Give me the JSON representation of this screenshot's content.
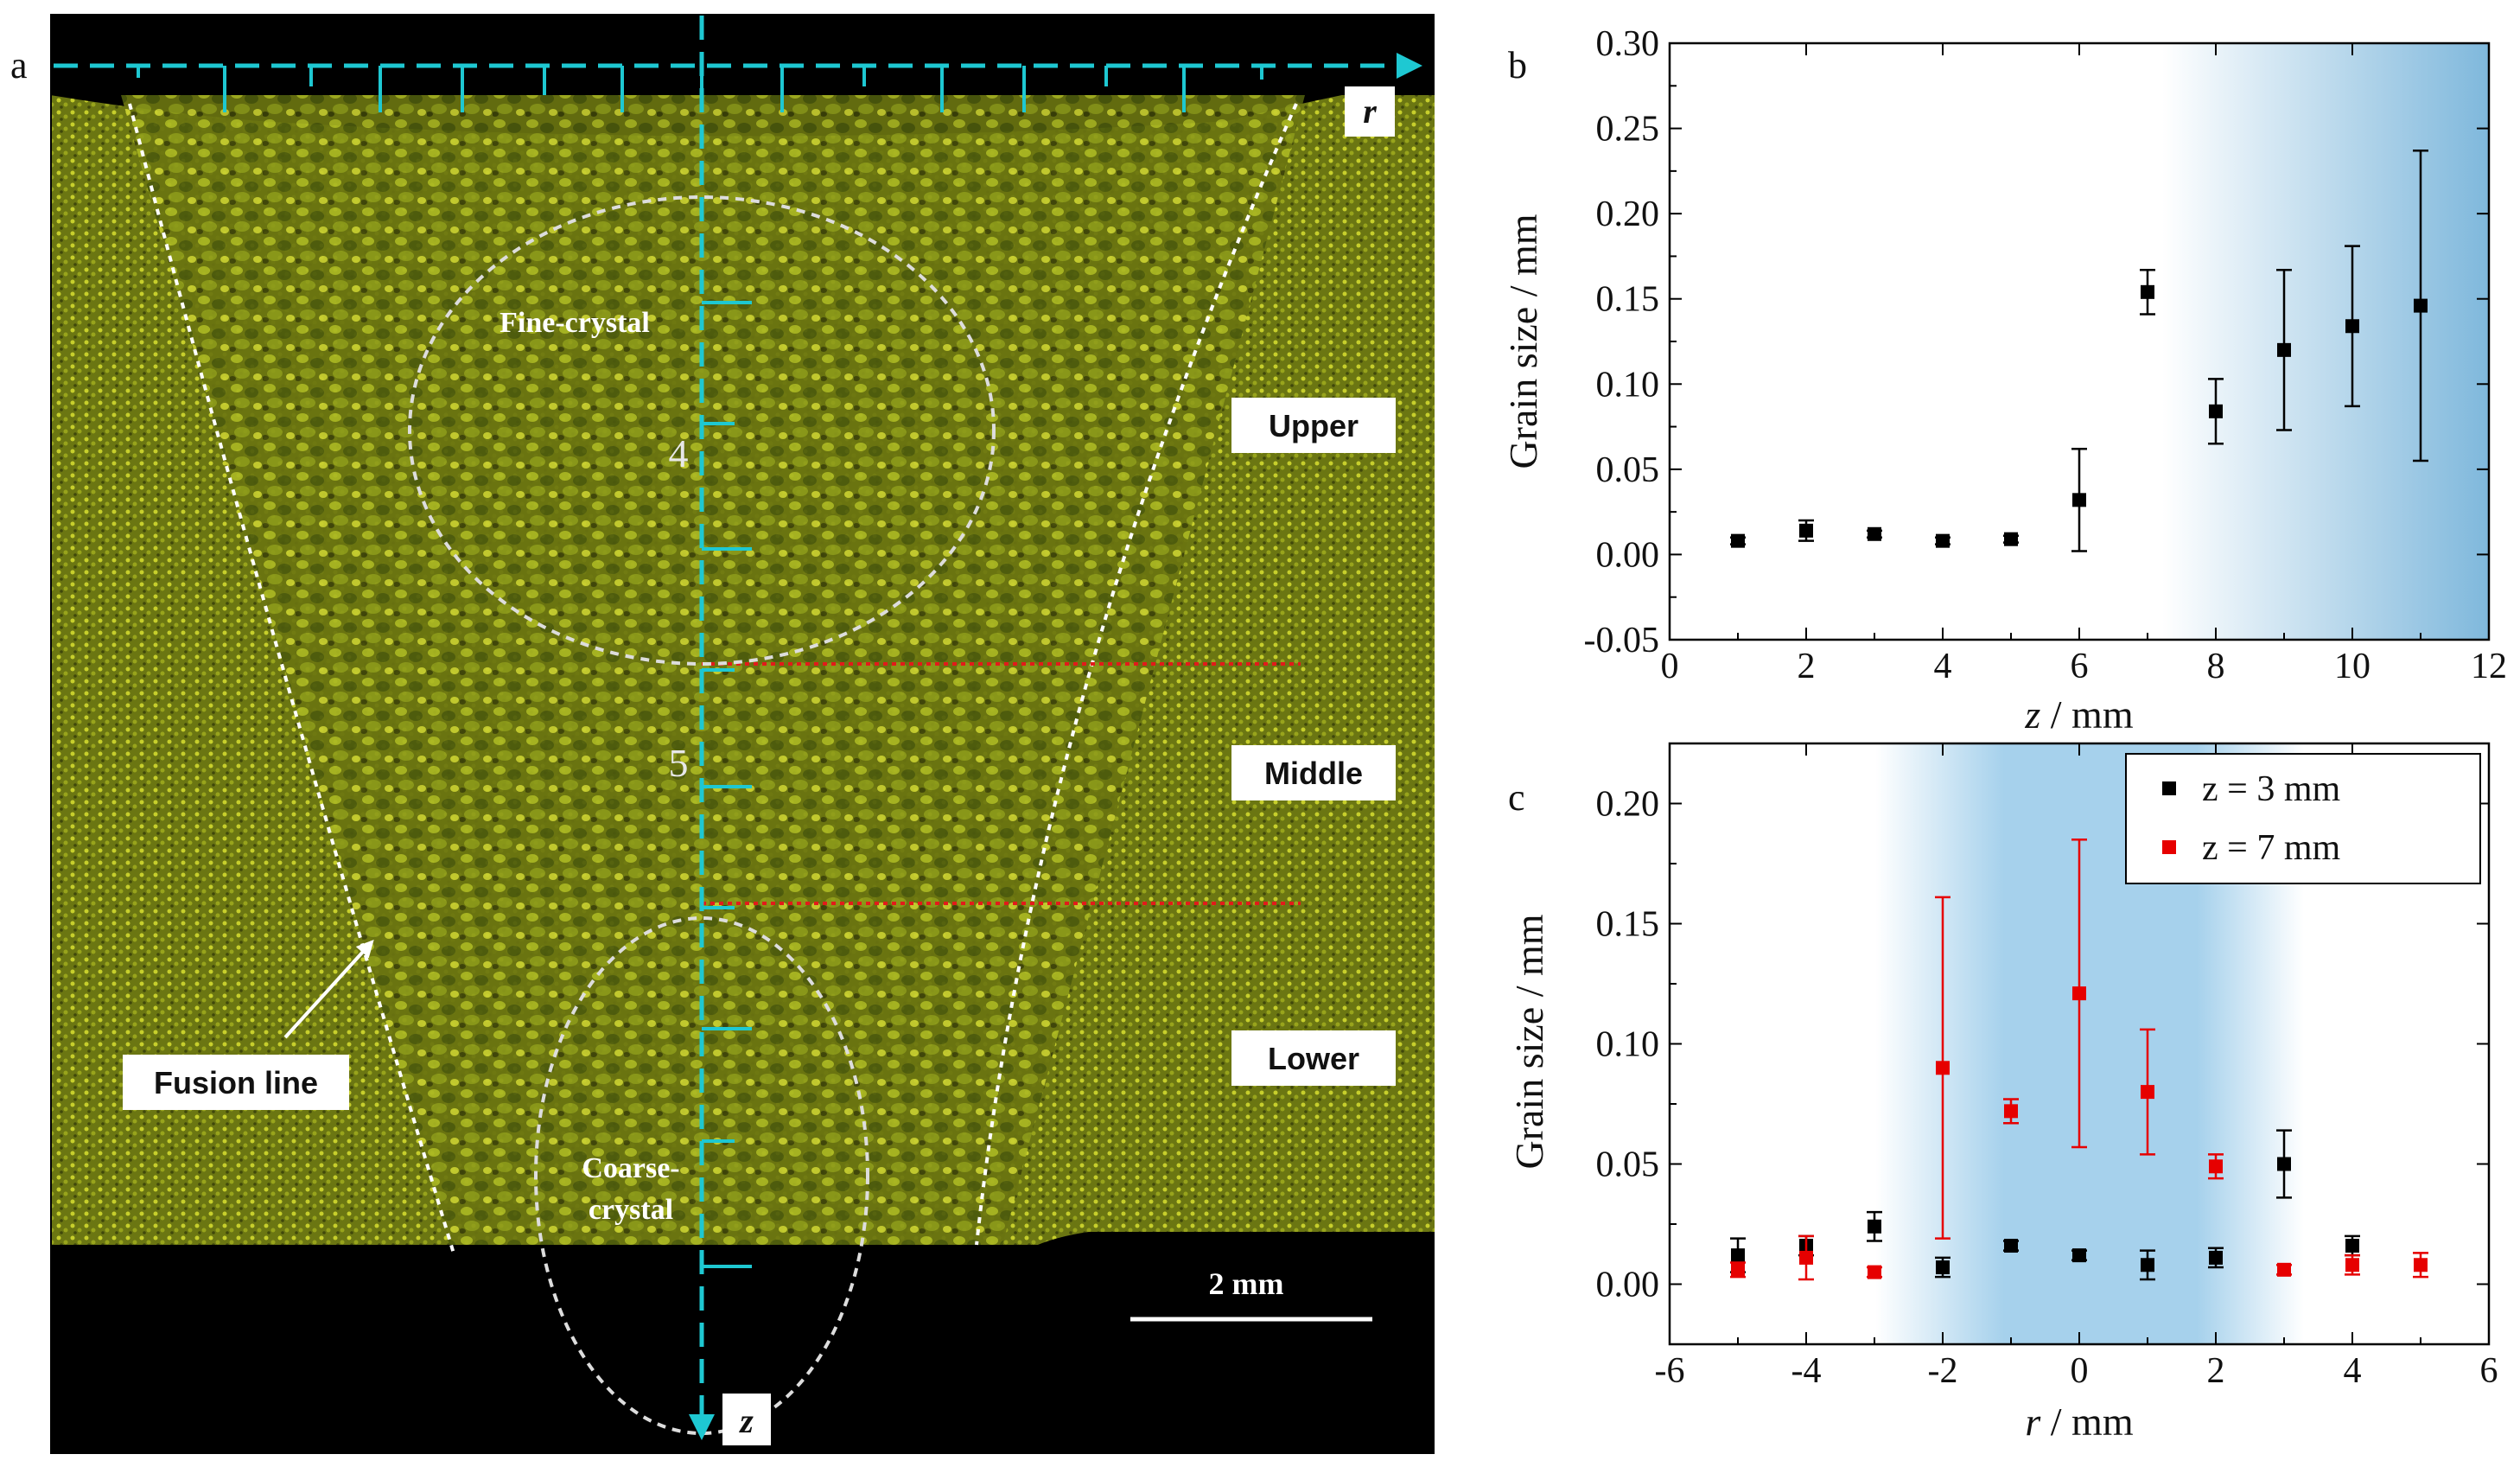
{
  "panel_a": {
    "letter": "a",
    "axis_r": "r",
    "axis_z": "z",
    "tick_4": "4",
    "tick_5": "5",
    "fine_label": "Fine-crystal",
    "coarse_label_1": "Coarse-",
    "coarse_label_2": "crystal",
    "region_upper": "Upper",
    "region_middle": "Middle",
    "region_lower": "Lower",
    "fusion_label": "Fusion line",
    "scale_label": "2 mm",
    "colors": {
      "background": "#000000",
      "weld": "#6f7a10",
      "axis": "#1ec8d2",
      "divider": "#e21b1b",
      "guide": "#ffffff"
    }
  },
  "chart_data": [
    {
      "panel": "b",
      "type": "scatter",
      "xlabel_var": "z",
      "xlabel_unit": " / mm",
      "ylabel": "Grain size / mm",
      "xlim": [
        0,
        12
      ],
      "ylim": [
        -0.05,
        0.3
      ],
      "xticks": [
        "0",
        "2",
        "4",
        "6",
        "8",
        "10",
        "12"
      ],
      "yticks": [
        "-0.05",
        "0.00",
        "0.05",
        "0.10",
        "0.15",
        "0.20",
        "0.25",
        "0.30"
      ],
      "shade_color": "#7fb8dc",
      "series": [
        {
          "name": "",
          "color": "#000000",
          "points": [
            {
              "x": 1,
              "y": 0.008,
              "err": 0.002
            },
            {
              "x": 2,
              "y": 0.014,
              "err": 0.006
            },
            {
              "x": 3,
              "y": 0.012,
              "err": 0.002
            },
            {
              "x": 4,
              "y": 0.008,
              "err": 0.002
            },
            {
              "x": 5,
              "y": 0.009,
              "err": 0.002
            },
            {
              "x": 6,
              "y": 0.032,
              "err": 0.03
            },
            {
              "x": 7,
              "y": 0.154,
              "err": 0.013
            },
            {
              "x": 8,
              "y": 0.084,
              "err": 0.019
            },
            {
              "x": 9,
              "y": 0.12,
              "err": 0.047
            },
            {
              "x": 10,
              "y": 0.134,
              "err": 0.047
            },
            {
              "x": 11,
              "y": 0.146,
              "err": 0.091
            }
          ]
        }
      ]
    },
    {
      "panel": "c",
      "type": "scatter",
      "xlabel_var": "r",
      "xlabel_unit": " / mm",
      "ylabel": "Grain size / mm",
      "xlim": [
        -6,
        6
      ],
      "ylim": [
        -0.025,
        0.225
      ],
      "xticks": [
        "-6",
        "-4",
        "-2",
        "0",
        "2",
        "4",
        "6"
      ],
      "yticks": [
        "0.00",
        "0.05",
        "0.10",
        "0.15",
        "0.20"
      ],
      "shade_color": "#a6d1ec",
      "series": [
        {
          "name": "z = 3 mm",
          "color": "#000000",
          "points": [
            {
              "x": -5,
              "y": 0.012,
              "err": 0.007
            },
            {
              "x": -4,
              "y": 0.016,
              "err": 0.004
            },
            {
              "x": -3,
              "y": 0.024,
              "err": 0.006
            },
            {
              "x": -2,
              "y": 0.007,
              "err": 0.004
            },
            {
              "x": -1,
              "y": 0.016,
              "err": 0.002
            },
            {
              "x": 0,
              "y": 0.012,
              "err": 0.002
            },
            {
              "x": 1,
              "y": 0.008,
              "err": 0.006
            },
            {
              "x": 2,
              "y": 0.011,
              "err": 0.004
            },
            {
              "x": 3,
              "y": 0.05,
              "err": 0.014
            },
            {
              "x": 4,
              "y": 0.016,
              "err": 0.004
            }
          ]
        },
        {
          "name": "z = 7 mm",
          "color": "#e60000",
          "points": [
            {
              "x": -5,
              "y": 0.006,
              "err": 0.003
            },
            {
              "x": -4,
              "y": 0.011,
              "err": 0.009
            },
            {
              "x": -3,
              "y": 0.005,
              "err": 0.002
            },
            {
              "x": -2,
              "y": 0.09,
              "err": 0.071
            },
            {
              "x": -1,
              "y": 0.072,
              "err": 0.005
            },
            {
              "x": 0,
              "y": 0.121,
              "err": 0.064
            },
            {
              "x": 1,
              "y": 0.08,
              "err": 0.026
            },
            {
              "x": 2,
              "y": 0.049,
              "err": 0.005
            },
            {
              "x": 3,
              "y": 0.006,
              "err": 0.002
            },
            {
              "x": 4,
              "y": 0.008,
              "err": 0.004
            },
            {
              "x": 5,
              "y": 0.008,
              "err": 0.005
            }
          ]
        }
      ]
    }
  ]
}
